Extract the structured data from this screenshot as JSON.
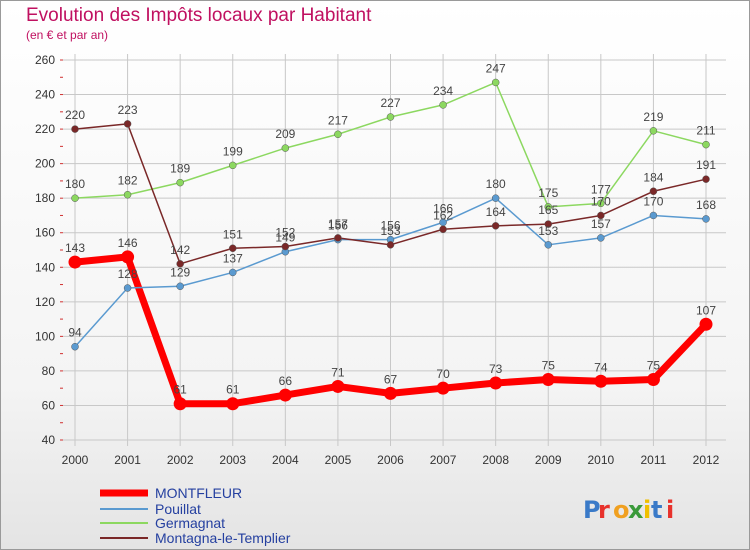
{
  "chart_data": {
    "type": "line",
    "title": "Evolution des Impôts locaux par Habitant",
    "subtitle": "(en € et par an)",
    "categories": [
      "2000",
      "2001",
      "2002",
      "2003",
      "2004",
      "2005",
      "2006",
      "2007",
      "2008",
      "2009",
      "2010",
      "2011",
      "2012"
    ],
    "ylim": [
      40,
      260
    ],
    "yticks": [
      40,
      60,
      80,
      100,
      120,
      140,
      160,
      180,
      200,
      220,
      240,
      260
    ],
    "grid": "horizontal",
    "series": [
      {
        "name": "MONTFLEUR",
        "color": "#ff0000",
        "values": [
          143,
          146,
          61,
          61,
          66,
          71,
          67,
          70,
          73,
          75,
          74,
          75,
          107
        ],
        "labels": [
          "143",
          "146",
          "61",
          "61",
          "66",
          "71",
          "67",
          "70",
          "73",
          "75",
          "74",
          "75",
          "107"
        ]
      },
      {
        "name": "Pouillat",
        "color": "#5a9ad0",
        "values": [
          94,
          128,
          129,
          137,
          149,
          156,
          156,
          166,
          180,
          153,
          157,
          170,
          168
        ],
        "labels": [
          "94",
          "128",
          "129",
          "137",
          "149",
          "156",
          "156",
          "166",
          "180",
          "153",
          "157",
          "170",
          "168"
        ]
      },
      {
        "name": "Germagnat",
        "color": "#8cd860",
        "values": [
          180,
          182,
          189,
          199,
          209,
          217,
          227,
          234,
          247,
          175,
          177,
          219,
          211
        ],
        "labels": [
          "180",
          "182",
          "189",
          "199",
          "209",
          "217",
          "227",
          "234",
          "247",
          "175",
          "177",
          "219",
          "211"
        ]
      },
      {
        "name": "Montagna-le-Templier",
        "color": "#7a2828",
        "values": [
          220,
          223,
          142,
          151,
          152,
          157,
          153,
          162,
          164,
          165,
          170,
          184,
          191
        ],
        "labels": [
          "220",
          "223",
          "142",
          "151",
          "152",
          "157",
          "153",
          "162",
          "164",
          "165",
          "170",
          "184",
          "191"
        ]
      }
    ],
    "legend_position": "bottom-left"
  },
  "logo": {
    "text": "Proxiti"
  }
}
